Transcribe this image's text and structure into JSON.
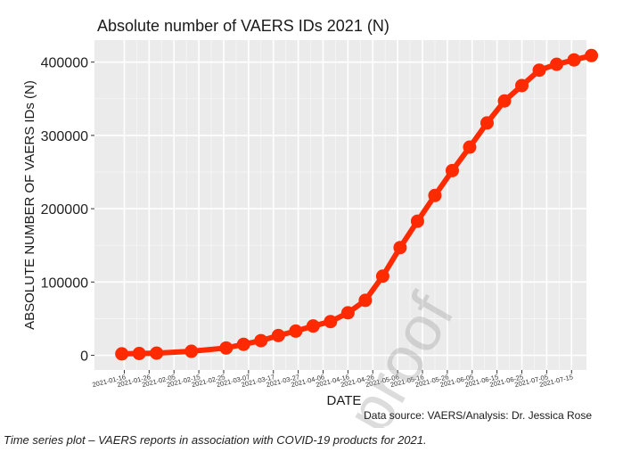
{
  "chart_data": {
    "type": "line",
    "title": "Absolute number of VAERS IDs 2021 (N)",
    "xlabel": "DATE",
    "ylabel": "ABSOLUTE NUMBER OF VAERS IDs (N)",
    "source_note": "Data source: VAERS/Analysis: Dr. Jessica Rose",
    "watermark": "proof",
    "x_tick_labels": [
      "2021-01-16",
      "2021-01-26",
      "2021-02-05",
      "2021-02-15",
      "2021-02-25",
      "2021-03-07",
      "2021-03-17",
      "2021-03-27",
      "2021-04-06",
      "2021-04-16",
      "2021-04-26",
      "2021-05-06",
      "2021-05-16",
      "2021-05-26",
      "2021-06-05",
      "2021-06-15",
      "2021-06-25",
      "2021-07-05",
      "2021-07-15"
    ],
    "y_ticks": [
      0,
      100000,
      200000,
      300000,
      400000
    ],
    "y_tick_labels": [
      "0",
      "100000",
      "200000",
      "300000",
      "400000"
    ],
    "ylim": [
      -20000,
      430000
    ],
    "xlim": [
      "2021-01-04",
      "2021-07-21"
    ],
    "grid": true,
    "series": [
      {
        "color": "#ff2a00",
        "points": [
          {
            "x": "2021-01-15",
            "y": 2000
          },
          {
            "x": "2021-01-22",
            "y": 2500
          },
          {
            "x": "2021-01-29",
            "y": 3000
          },
          {
            "x": "2021-02-12",
            "y": 5500
          },
          {
            "x": "2021-02-26",
            "y": 10000
          },
          {
            "x": "2021-03-05",
            "y": 15000
          },
          {
            "x": "2021-03-12",
            "y": 20000
          },
          {
            "x": "2021-03-19",
            "y": 27000
          },
          {
            "x": "2021-03-26",
            "y": 33000
          },
          {
            "x": "2021-04-02",
            "y": 40000
          },
          {
            "x": "2021-04-09",
            "y": 46000
          },
          {
            "x": "2021-04-16",
            "y": 58000
          },
          {
            "x": "2021-04-23",
            "y": 75000
          },
          {
            "x": "2021-04-30",
            "y": 108000
          },
          {
            "x": "2021-05-07",
            "y": 147000
          },
          {
            "x": "2021-05-14",
            "y": 183000
          },
          {
            "x": "2021-05-21",
            "y": 218000
          },
          {
            "x": "2021-05-28",
            "y": 252000
          },
          {
            "x": "2021-06-04",
            "y": 284000
          },
          {
            "x": "2021-06-11",
            "y": 317000
          },
          {
            "x": "2021-06-18",
            "y": 347000
          },
          {
            "x": "2021-06-25",
            "y": 368000
          },
          {
            "x": "2021-07-02",
            "y": 389000
          },
          {
            "x": "2021-07-09",
            "y": 397000
          },
          {
            "x": "2021-07-16",
            "y": 403000
          },
          {
            "x": "2021-07-23",
            "y": 409000
          }
        ]
      }
    ]
  },
  "caption": "Time series plot – VAERS reports in association with COVID-19 products for 2021."
}
